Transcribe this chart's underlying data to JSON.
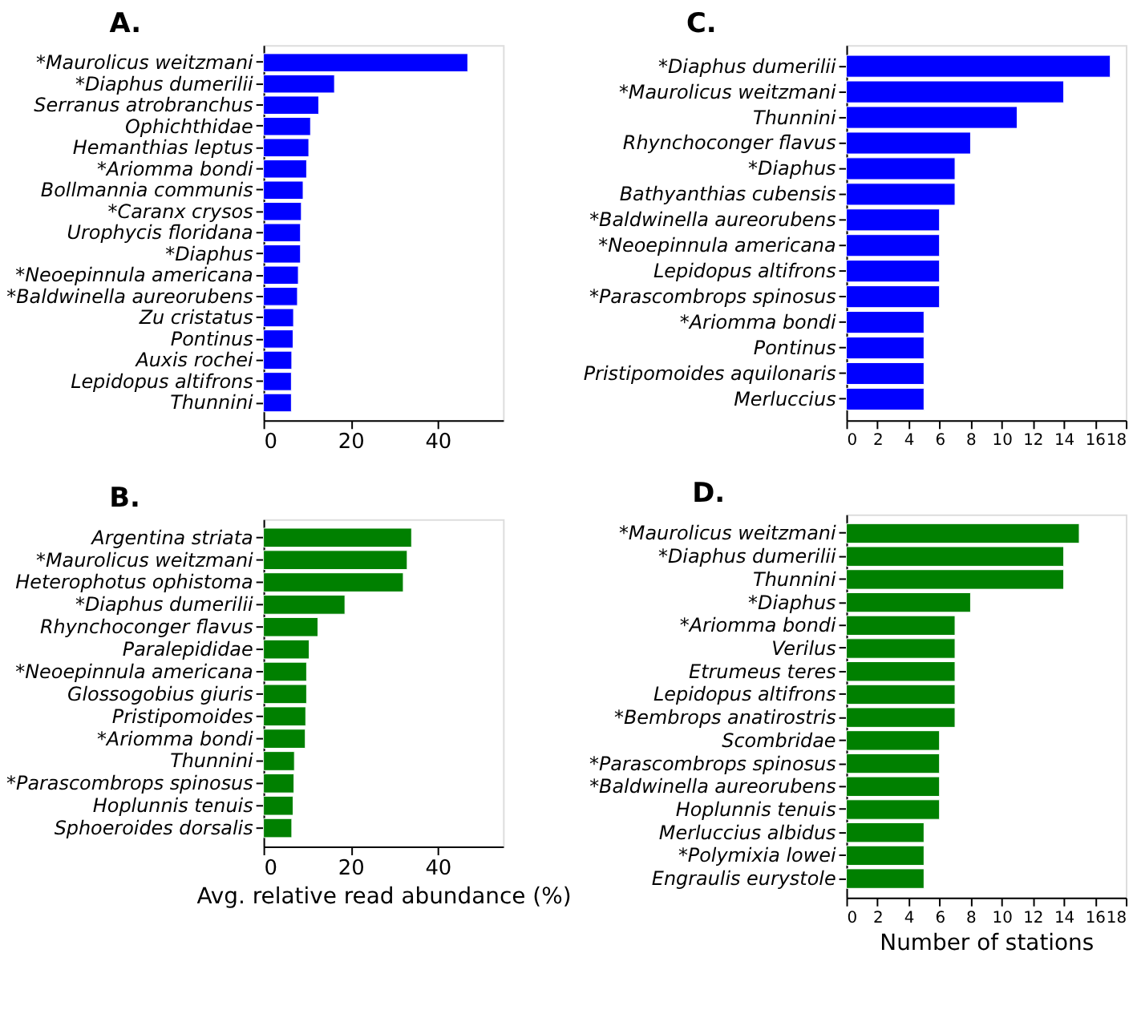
{
  "chart_data": [
    {
      "type": "bar",
      "orientation": "horizontal",
      "title": "A.",
      "color": "#0000ff",
      "grid": false,
      "xlim": [
        0,
        55
      ],
      "xticks": [
        0,
        20,
        40
      ],
      "categories": [
        "*Maurolicus weitzmani",
        "*Diaphus dumerilii",
        "Serranus atrobranchus",
        "Ophichthidae",
        "Hemanthias leptus",
        "*Ariomma bondi",
        "Bollmannia communis",
        "*Caranx crysos",
        "Urophycis floridana",
        "*Diaphus",
        "*Neoepinnula americana",
        "*Baldwinella aureorubens",
        "Zu cristatus",
        "Pontinus",
        "Auxis rochei",
        "Lepidopus altifrons",
        "Thunnini"
      ],
      "values": [
        46.9,
        16.3,
        12.7,
        10.8,
        10.4,
        9.9,
        9.1,
        8.7,
        8.5,
        8.5,
        8.0,
        7.8,
        6.9,
        6.8,
        6.5,
        6.4,
        6.4
      ]
    },
    {
      "type": "bar",
      "orientation": "horizontal",
      "title": "B.",
      "color": "#008000",
      "grid": false,
      "xlim": [
        0,
        55
      ],
      "xticks": [
        0,
        20,
        40
      ],
      "xlabel": "Avg. relative read abundance (%)",
      "categories": [
        "Argentina striata",
        "*Maurolicus weitzmani",
        "Heterophotus ophistoma",
        "*Diaphus dumerilii",
        "Rhynchoconger flavus",
        "Paralepididae",
        "*Neoepinnula americana",
        "Glossogobius giuris",
        "Pristipomoides",
        "*Ariomma bondi",
        "Thunnini",
        "*Parascombrops spinosus",
        "Hoplunnis tenuis",
        "Sphoeroides dorsalis"
      ],
      "values": [
        34.0,
        33.0,
        32.1,
        18.7,
        12.5,
        10.5,
        9.9,
        9.9,
        9.7,
        9.6,
        7.1,
        7.0,
        6.8,
        6.5
      ]
    },
    {
      "type": "bar",
      "orientation": "horizontal",
      "title": "C.",
      "color": "#0000ff",
      "grid": false,
      "xlim": [
        0,
        18
      ],
      "xticks": [
        0,
        2,
        4,
        6,
        8,
        10,
        12,
        14,
        16,
        18
      ],
      "categories": [
        "*Diaphus dumerilii",
        "*Maurolicus weitzmani",
        "Thunnini",
        "Rhynchoconger flavus",
        "*Diaphus",
        "Bathyanthias cubensis",
        "*Baldwinella aureorubens",
        "*Neoepinnula americana",
        "Lepidopus altifrons",
        "*Parascombrops spinosus",
        "*Ariomma bondi",
        "Pontinus",
        "Pristipomoides aquilonaris",
        "Merluccius"
      ],
      "values": [
        17,
        14,
        11,
        8,
        7,
        7,
        6,
        6,
        6,
        6,
        5,
        5,
        5,
        5
      ]
    },
    {
      "type": "bar",
      "orientation": "horizontal",
      "title": "D.",
      "color": "#008000",
      "grid": false,
      "xlim": [
        0,
        18
      ],
      "xticks": [
        0,
        2,
        4,
        6,
        8,
        10,
        12,
        14,
        16,
        18
      ],
      "xlabel": "Number of stations",
      "categories": [
        "*Maurolicus weitzmani",
        "*Diaphus dumerilii",
        "Thunnini",
        "*Diaphus",
        "*Ariomma bondi",
        "Verilus",
        "Etrumeus teres",
        "Lepidopus altifrons",
        "*Bembrops anatirostris",
        "Scombridae",
        "*Parascombrops spinosus",
        "*Baldwinella aureorubens",
        "Hoplunnis tenuis",
        "Merluccius albidus",
        "*Polymixia lowei",
        "Engraulis eurystole"
      ],
      "values": [
        15,
        14,
        14,
        8,
        7,
        7,
        7,
        7,
        7,
        6,
        6,
        6,
        6,
        5,
        5,
        5
      ]
    }
  ]
}
